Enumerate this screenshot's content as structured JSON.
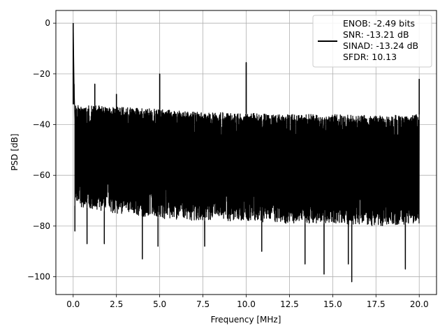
{
  "chart_data": {
    "type": "line",
    "title": "",
    "xlabel": "Frequency [MHz]",
    "ylabel": "PSD [dB]",
    "xlim": [
      -1.0,
      21.0
    ],
    "ylim": [
      -107,
      5
    ],
    "xticks": [
      0.0,
      2.5,
      5.0,
      7.5,
      10.0,
      12.5,
      15.0,
      17.5,
      20.0
    ],
    "xtick_labels": [
      "0.0",
      "2.5",
      "5.0",
      "7.5",
      "10.0",
      "12.5",
      "15.0",
      "17.5",
      "20.0"
    ],
    "yticks": [
      0,
      -20,
      -40,
      -60,
      -80,
      -100
    ],
    "ytick_labels": [
      "0",
      "−20",
      "−40",
      "−60",
      "−80",
      "−100"
    ],
    "grid": true,
    "legend_placement": "upper-right",
    "legend": {
      "lines": [
        "ENOB: -2.49 bits",
        "SNR: -13.21 dB",
        "SINAD: -13.24 dB",
        "SFDR: 10.13"
      ]
    },
    "series": [
      {
        "color": "#000000",
        "noise_floor_upper": [
          [
            0.1,
            -32
          ],
          [
            2.5,
            -33
          ],
          [
            5.0,
            -34
          ],
          [
            7.5,
            -35
          ],
          [
            10.0,
            -35.5
          ],
          [
            12.5,
            -36
          ],
          [
            15.0,
            -36
          ],
          [
            17.5,
            -36.5
          ],
          [
            20.0,
            -36
          ]
        ],
        "noise_floor_lower": [
          [
            0.1,
            -72
          ],
          [
            2.5,
            -75
          ],
          [
            5.0,
            -77
          ],
          [
            7.5,
            -78
          ],
          [
            10.0,
            -78
          ],
          [
            12.5,
            -79
          ],
          [
            15.0,
            -79
          ],
          [
            17.5,
            -80
          ],
          [
            20.0,
            -79
          ]
        ],
        "spikes": [
          {
            "x": 0.0,
            "y": 0
          },
          {
            "x": 0.05,
            "y": -24
          },
          {
            "x": 1.25,
            "y": -24
          },
          {
            "x": 2.5,
            "y": -28
          },
          {
            "x": 5.0,
            "y": -20
          },
          {
            "x": 10.0,
            "y": -15.5
          },
          {
            "x": 20.0,
            "y": -22
          }
        ],
        "deep_dips": [
          {
            "x": 0.1,
            "y": -82
          },
          {
            "x": 0.8,
            "y": -87
          },
          {
            "x": 1.8,
            "y": -87
          },
          {
            "x": 4.0,
            "y": -93
          },
          {
            "x": 4.9,
            "y": -88
          },
          {
            "x": 7.6,
            "y": -88
          },
          {
            "x": 10.9,
            "y": -90
          },
          {
            "x": 13.4,
            "y": -95
          },
          {
            "x": 14.5,
            "y": -99
          },
          {
            "x": 15.9,
            "y": -95
          },
          {
            "x": 16.1,
            "y": -102
          },
          {
            "x": 19.2,
            "y": -97
          }
        ]
      }
    ]
  }
}
